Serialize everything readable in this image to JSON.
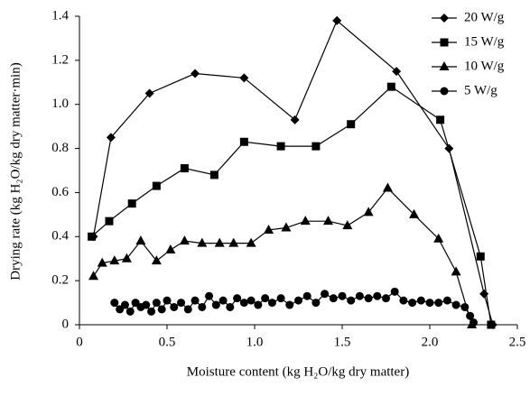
{
  "chart_data": {
    "type": "line",
    "x_label": "Moisture content (kg H₂O/kg dry matter)",
    "y_label": "Drying rate (kg H₂O/kg dry matter·min)",
    "xlim": [
      0,
      2.5
    ],
    "xticks": [
      0,
      0.5,
      {
        "value": 1,
        "label": "1.0"
      },
      1.5,
      {
        "value": 2,
        "label": "2.0"
      },
      2.5
    ],
    "ylim": [
      0,
      1.4
    ],
    "yticks": [
      0,
      0.2,
      0.4,
      0.6,
      0.8,
      {
        "value": 1,
        "label": "1.0"
      },
      1.2,
      1.4
    ],
    "legend": "upper right",
    "series": [
      {
        "name": "20 W/g",
        "color": "#000000",
        "marker": "diamond",
        "x": [
          0.08,
          0.18,
          0.4,
          0.66,
          0.94,
          1.23,
          1.47,
          1.81,
          2.11,
          2.31,
          2.36
        ],
        "values": [
          0.4,
          0.85,
          1.05,
          1.14,
          1.12,
          0.93,
          1.38,
          1.15,
          0.8,
          0.14,
          0
        ]
      },
      {
        "name": "15 W/g",
        "color": "#000000",
        "marker": "square",
        "x": [
          0.07,
          0.17,
          0.3,
          0.44,
          0.6,
          0.77,
          0.94,
          1.15,
          1.35,
          1.55,
          1.78,
          2.06,
          2.29,
          2.35
        ],
        "values": [
          0.4,
          0.47,
          0.55,
          0.63,
          0.71,
          0.68,
          0.83,
          0.81,
          0.81,
          0.91,
          1.08,
          0.93,
          0.31,
          0
        ]
      },
      {
        "name": "10 W/g",
        "color": "#000000",
        "marker": "triangle",
        "x": [
          0.08,
          0.13,
          0.2,
          0.27,
          0.35,
          0.44,
          0.52,
          0.6,
          0.7,
          0.8,
          0.88,
          0.98,
          1.08,
          1.18,
          1.29,
          1.42,
          1.53,
          1.65,
          1.76,
          1.91,
          2.05,
          2.15,
          2.24
        ],
        "values": [
          0.22,
          0.28,
          0.29,
          0.3,
          0.38,
          0.29,
          0.34,
          0.38,
          0.37,
          0.37,
          0.37,
          0.37,
          0.43,
          0.44,
          0.47,
          0.47,
          0.45,
          0.51,
          0.62,
          0.5,
          0.39,
          0.24,
          0
        ]
      },
      {
        "name": "5 W/g",
        "color": "#000000",
        "marker": "circle",
        "x": [
          0.2,
          0.23,
          0.26,
          0.29,
          0.32,
          0.35,
          0.38,
          0.41,
          0.44,
          0.47,
          0.5,
          0.54,
          0.58,
          0.62,
          0.66,
          0.7,
          0.74,
          0.78,
          0.82,
          0.86,
          0.9,
          0.94,
          0.98,
          1.02,
          1.06,
          1.1,
          1.15,
          1.2,
          1.25,
          1.3,
          1.35,
          1.4,
          1.45,
          1.5,
          1.55,
          1.6,
          1.65,
          1.7,
          1.75,
          1.8,
          1.85,
          1.9,
          1.95,
          2.0,
          2.05,
          2.1,
          2.15,
          2.2,
          2.23,
          2.25
        ],
        "values": [
          0.1,
          0.07,
          0.09,
          0.06,
          0.1,
          0.08,
          0.09,
          0.06,
          0.1,
          0.07,
          0.11,
          0.08,
          0.1,
          0.07,
          0.11,
          0.08,
          0.13,
          0.09,
          0.11,
          0.08,
          0.12,
          0.1,
          0.11,
          0.09,
          0.12,
          0.1,
          0.12,
          0.09,
          0.11,
          0.13,
          0.1,
          0.14,
          0.12,
          0.13,
          0.11,
          0.13,
          0.12,
          0.13,
          0.12,
          0.15,
          0.11,
          0.1,
          0.11,
          0.1,
          0.1,
          0.11,
          0.09,
          0.08,
          0.04,
          0.01
        ]
      }
    ]
  }
}
